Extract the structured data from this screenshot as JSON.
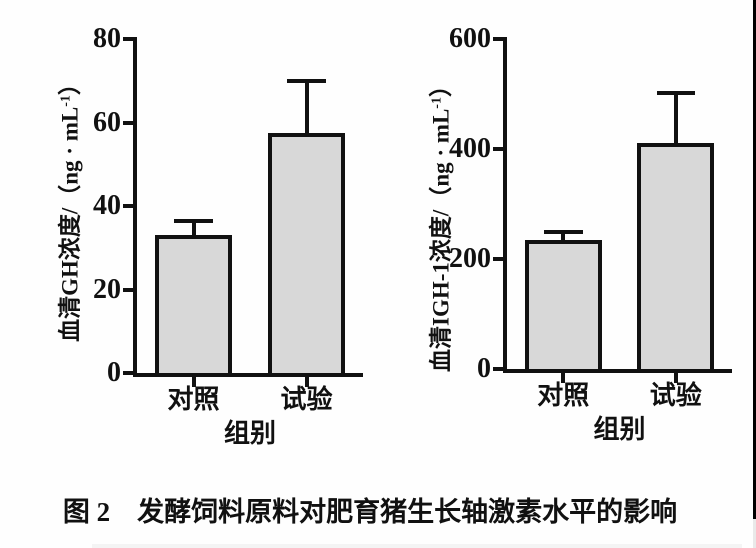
{
  "page": {
    "caption": "图 2　发酵饲料原料对肥育猪生长轴激素水平的影响",
    "background": "#fefefe",
    "line_color": "#111111",
    "bar_fill": "#d8d8d8",
    "right_edge_strip_color": "#000000"
  },
  "chart_data": [
    {
      "type": "bar",
      "title": "",
      "xlabel": "组别",
      "ylabel": "血清GH浓度/（ng · mL⁻¹）",
      "ylabel_parts": {
        "pre": "血清GH浓度/（ng · mL",
        "sup": "-1",
        "post": "）"
      },
      "categories": [
        "对照",
        "试验"
      ],
      "values": [
        33,
        57.5
      ],
      "errors_plus": [
        4,
        13
      ],
      "ylim": [
        0,
        80
      ],
      "yticks": [
        0,
        20,
        40,
        60,
        80
      ],
      "grid": false,
      "legend": null,
      "bar_fill": "#d8d8d8"
    },
    {
      "type": "bar",
      "title": "",
      "xlabel": "组别",
      "ylabel": "血清IGH-1浓度/（ng · mL⁻¹）",
      "ylabel_parts": {
        "pre": "血清IGH-1浓度/（ng · mL",
        "sup": "-1",
        "post": "）"
      },
      "categories": [
        "对照",
        "试验"
      ],
      "values": [
        235,
        410
      ],
      "errors_plus": [
        18,
        95
      ],
      "ylim": [
        0,
        600
      ],
      "yticks": [
        0,
        200,
        400,
        600
      ],
      "grid": false,
      "legend": null,
      "bar_fill": "#d8d8d8"
    }
  ]
}
